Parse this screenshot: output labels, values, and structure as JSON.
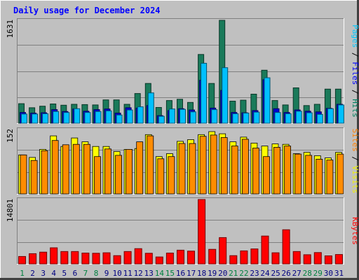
{
  "chart_data": [
    {
      "type": "bar",
      "title": "Daily usage for December 2024",
      "panel": "top",
      "yaxis_max_label": "1631",
      "ylabel_parts": [
        {
          "text": "Pages",
          "color": "#00c8ff"
        },
        {
          "text": " / ",
          "color": "#000000"
        },
        {
          "text": "Files",
          "color": "#0000ff"
        },
        {
          "text": " / ",
          "color": "#000000"
        },
        {
          "text": "Hits",
          "color": "#008060"
        }
      ],
      "ylim": [
        0,
        1631
      ],
      "categories": [
        "1",
        "2",
        "3",
        "4",
        "5",
        "6",
        "7",
        "8",
        "9",
        "10",
        "11",
        "12",
        "13",
        "14",
        "15",
        "16",
        "17",
        "18",
        "19",
        "20",
        "21",
        "22",
        "23",
        "24",
        "25",
        "26",
        "27",
        "28",
        "29",
        "30",
        "31"
      ],
      "series": [
        {
          "name": "Hits",
          "color": "#1a7a5a",
          "values": [
            310,
            245,
            270,
            305,
            285,
            300,
            295,
            290,
            370,
            370,
            300,
            470,
            630,
            250,
            360,
            380,
            330,
            1090,
            630,
            1631,
            350,
            365,
            460,
            840,
            360,
            290,
            560,
            280,
            300,
            540,
            540
          ]
        },
        {
          "name": "Files",
          "color": "#0000d0",
          "values": [
            170,
            160,
            165,
            215,
            185,
            225,
            190,
            215,
            225,
            160,
            245,
            240,
            280,
            120,
            200,
            230,
            210,
            680,
            240,
            520,
            170,
            165,
            200,
            690,
            230,
            170,
            210,
            190,
            180,
            235,
            300
          ]
        },
        {
          "name": "Pages",
          "color": "#00c0ff",
          "values": [
            145,
            145,
            150,
            185,
            170,
            230,
            170,
            185,
            195,
            130,
            210,
            260,
            480,
            110,
            225,
            220,
            180,
            950,
            215,
            880,
            150,
            160,
            175,
            720,
            170,
            150,
            190,
            165,
            140,
            230,
            290
          ]
        }
      ]
    },
    {
      "type": "bar",
      "panel": "middle",
      "yaxis_max_label": "152",
      "ylabel_parts": [
        {
          "text": "Sites",
          "color": "#ff8000"
        },
        {
          "text": " / ",
          "color": "#000000"
        },
        {
          "text": "Visits",
          "color": "#f0f000"
        }
      ],
      "ylim": [
        0,
        152
      ],
      "categories": [
        "1",
        "2",
        "3",
        "4",
        "5",
        "6",
        "7",
        "8",
        "9",
        "10",
        "11",
        "12",
        "13",
        "14",
        "15",
        "16",
        "17",
        "18",
        "19",
        "20",
        "21",
        "22",
        "23",
        "24",
        "25",
        "26",
        "27",
        "28",
        "29",
        "30",
        "31"
      ],
      "series": [
        {
          "name": "Visits",
          "color": "#ffff00",
          "values": [
            92,
            86,
            105,
            137,
            112,
            132,
            123,
            112,
            112,
            100,
            105,
            107,
            140,
            88,
            95,
            124,
            128,
            140,
            147,
            142,
            123,
            134,
            120,
            113,
            118,
            117,
            95,
            98,
            90,
            85,
            98
          ]
        },
        {
          "name": "Sites",
          "color": "#ff8c00",
          "values": [
            92,
            79,
            102,
            126,
            116,
            117,
            117,
            88,
            106,
            91,
            105,
            123,
            137,
            83,
            88,
            119,
            119,
            136,
            139,
            133,
            113,
            129,
            108,
            88,
            110,
            113,
            94,
            91,
            82,
            80,
            94
          ]
        }
      ]
    },
    {
      "type": "bar",
      "panel": "bottom",
      "yaxis_max_label": "14801",
      "ylabel_parts": [
        {
          "text": "KBytes",
          "color": "#ff0000"
        }
      ],
      "ylim": [
        0,
        14801
      ],
      "categories": [
        "1",
        "2",
        "3",
        "4",
        "5",
        "6",
        "7",
        "8",
        "9",
        "10",
        "11",
        "12",
        "13",
        "14",
        "15",
        "16",
        "17",
        "18",
        "19",
        "20",
        "21",
        "22",
        "23",
        "24",
        "25",
        "26",
        "27",
        "28",
        "29",
        "30",
        "31"
      ],
      "series": [
        {
          "name": "KBytes",
          "color": "#ff0000",
          "values": [
            1700,
            2350,
            2700,
            3700,
            2850,
            2850,
            2500,
            2450,
            2550,
            1900,
            2850,
            3500,
            2450,
            1600,
            2500,
            3150,
            2950,
            14801,
            3350,
            6050,
            1900,
            3000,
            3450,
            6400,
            2550,
            7850,
            2850,
            2100,
            2600,
            1850,
            2150
          ]
        }
      ]
    }
  ],
  "day_labels": [
    {
      "text": "1",
      "color": "#008040"
    },
    {
      "text": "2",
      "color": "#000080"
    },
    {
      "text": "3",
      "color": "#000080"
    },
    {
      "text": "4",
      "color": "#000080"
    },
    {
      "text": "5",
      "color": "#000080"
    },
    {
      "text": "6",
      "color": "#000080"
    },
    {
      "text": "7",
      "color": "#008040"
    },
    {
      "text": "8",
      "color": "#008040"
    },
    {
      "text": "9",
      "color": "#000080"
    },
    {
      "text": "10",
      "color": "#000080"
    },
    {
      "text": "11",
      "color": "#000080"
    },
    {
      "text": "12",
      "color": "#000080"
    },
    {
      "text": "13",
      "color": "#000080"
    },
    {
      "text": "14",
      "color": "#008040"
    },
    {
      "text": "15",
      "color": "#008040"
    },
    {
      "text": "16",
      "color": "#000080"
    },
    {
      "text": "17",
      "color": "#000080"
    },
    {
      "text": "18",
      "color": "#000080"
    },
    {
      "text": "19",
      "color": "#000080"
    },
    {
      "text": "20",
      "color": "#000080"
    },
    {
      "text": "21",
      "color": "#008040"
    },
    {
      "text": "22",
      "color": "#008040"
    },
    {
      "text": "23",
      "color": "#000080"
    },
    {
      "text": "24",
      "color": "#000080"
    },
    {
      "text": "25",
      "color": "#000080"
    },
    {
      "text": "26",
      "color": "#000080"
    },
    {
      "text": "27",
      "color": "#000080"
    },
    {
      "text": "28",
      "color": "#008040"
    },
    {
      "text": "29",
      "color": "#008040"
    },
    {
      "text": "30",
      "color": "#000080"
    },
    {
      "text": "31",
      "color": "#000080"
    }
  ],
  "colors": {
    "background": "#c0c0c0",
    "plot_area": "#c0c0c0",
    "grid": "#808080",
    "title": "#0000ff"
  }
}
